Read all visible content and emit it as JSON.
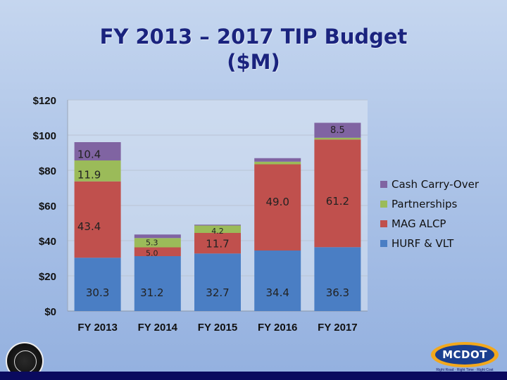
{
  "title_line1": "FY 2013 – 2017 TIP Budget",
  "title_line2": "($M)",
  "logo": {
    "text": "MCDOT",
    "tagline": "Right Road · Right Time · Right Cost"
  },
  "colors": {
    "HURF & VLT": "#4a7ec4",
    "MAG ALCP": "#c0504d",
    "Partnerships": "#9bbb59",
    "Cash Carry-Over": "#8064a2"
  },
  "chart_data": {
    "type": "bar",
    "stacked": true,
    "title": "FY 2013 – 2017 TIP Budget ($M)",
    "categories": [
      "FY 2013",
      "FY 2014",
      "FY 2015",
      "FY 2016",
      "FY 2017"
    ],
    "series": [
      {
        "name": "HURF & VLT",
        "values": [
          30.3,
          31.2,
          32.7,
          34.4,
          36.3
        ],
        "labels": [
          "30.3",
          "31.2",
          "32.7",
          "34.4",
          "36.3"
        ]
      },
      {
        "name": "MAG ALCP",
        "values": [
          43.4,
          5.0,
          11.7,
          49.0,
          61.2
        ],
        "labels": [
          "43.4",
          "5.0",
          "11.7",
          "49.0",
          "61.2"
        ]
      },
      {
        "name": "Partnerships",
        "values": [
          11.9,
          5.3,
          4.2,
          1.5,
          1.0
        ],
        "labels": [
          "11.9",
          "5.3",
          "4.2",
          "",
          ""
        ]
      },
      {
        "name": "Cash Carry-Over",
        "values": [
          10.4,
          2.0,
          0.5,
          2.0,
          8.5
        ],
        "labels": [
          "10.4",
          "",
          "",
          "",
          "8.5"
        ]
      }
    ],
    "ylim": [
      0,
      120
    ],
    "yticks": [
      "$0",
      "$20",
      "$40",
      "$60",
      "$80",
      "$100",
      "$120"
    ],
    "grid": true,
    "legend_position": "right"
  }
}
